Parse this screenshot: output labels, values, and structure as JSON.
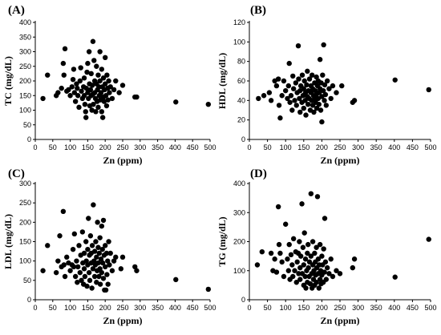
{
  "chart_data": [
    {
      "panel": "(A)",
      "type": "scatter",
      "xlabel": "Zn (ppm)",
      "ylabel": "TC (mg/dL)",
      "xlim": [
        0,
        500
      ],
      "ylim": [
        0,
        400
      ],
      "xticks": [
        0,
        50,
        100,
        150,
        200,
        250,
        300,
        350,
        400,
        450,
        500
      ],
      "yticks": [
        0,
        50,
        100,
        150,
        200,
        250,
        300,
        350,
        400
      ],
      "points": [
        [
          22,
          140
        ],
        [
          35,
          220
        ],
        [
          60,
          150
        ],
        [
          65,
          160
        ],
        [
          75,
          175
        ],
        [
          80,
          260
        ],
        [
          82,
          220
        ],
        [
          85,
          310
        ],
        [
          90,
          165
        ],
        [
          95,
          170
        ],
        [
          100,
          150
        ],
        [
          105,
          180
        ],
        [
          108,
          205
        ],
        [
          110,
          240
        ],
        [
          112,
          160
        ],
        [
          115,
          130
        ],
        [
          118,
          190
        ],
        [
          120,
          175
        ],
        [
          122,
          150
        ],
        [
          125,
          110
        ],
        [
          128,
          200
        ],
        [
          130,
          245
        ],
        [
          132,
          165
        ],
        [
          135,
          140
        ],
        [
          138,
          180
        ],
        [
          140,
          150
        ],
        [
          140,
          210
        ],
        [
          142,
          120
        ],
        [
          144,
          95
        ],
        [
          145,
          75
        ],
        [
          146,
          175
        ],
        [
          148,
          230
        ],
        [
          150,
          160
        ],
        [
          150,
          260
        ],
        [
          152,
          140
        ],
        [
          154,
          300
        ],
        [
          155,
          190
        ],
        [
          156,
          115
        ],
        [
          158,
          170
        ],
        [
          160,
          150
        ],
        [
          160,
          225
        ],
        [
          162,
          100
        ],
        [
          163,
          185
        ],
        [
          165,
          335
        ],
        [
          165,
          155
        ],
        [
          166,
          120
        ],
        [
          168,
          270
        ],
        [
          170,
          160
        ],
        [
          170,
          200
        ],
        [
          172,
          140
        ],
        [
          173,
          95
        ],
        [
          175,
          190
        ],
        [
          175,
          250
        ],
        [
          177,
          130
        ],
        [
          178,
          170
        ],
        [
          180,
          220
        ],
        [
          180,
          110
        ],
        [
          182,
          180
        ],
        [
          183,
          150
        ],
        [
          185,
          300
        ],
        [
          185,
          200
        ],
        [
          186,
          135
        ],
        [
          188,
          160
        ],
        [
          190,
          95
        ],
        [
          190,
          240
        ],
        [
          192,
          180
        ],
        [
          193,
          75
        ],
        [
          195,
          145
        ],
        [
          195,
          210
        ],
        [
          197,
          130
        ],
        [
          198,
          170
        ],
        [
          200,
          190
        ],
        [
          200,
          280
        ],
        [
          202,
          150
        ],
        [
          204,
          115
        ],
        [
          205,
          220
        ],
        [
          207,
          175
        ],
        [
          208,
          135
        ],
        [
          210,
          200
        ],
        [
          212,
          160
        ],
        [
          215,
          180
        ],
        [
          220,
          140
        ],
        [
          225,
          170
        ],
        [
          230,
          200
        ],
        [
          240,
          160
        ],
        [
          250,
          185
        ],
        [
          285,
          145
        ],
        [
          290,
          145
        ],
        [
          402,
          128
        ],
        [
          495,
          120
        ]
      ]
    },
    {
      "panel": "(B)",
      "type": "scatter",
      "xlabel": "Zn (ppm)",
      "ylabel": "HDL (mg/dL)",
      "xlim": [
        0,
        500
      ],
      "ylim": [
        0,
        120
      ],
      "xticks": [
        0,
        50,
        100,
        150,
        200,
        250,
        300,
        350,
        400,
        450,
        500
      ],
      "yticks": [
        0,
        20,
        40,
        60,
        80,
        100,
        120
      ],
      "points": [
        [
          25,
          42
        ],
        [
          40,
          45
        ],
        [
          55,
          48
        ],
        [
          60,
          40
        ],
        [
          70,
          60
        ],
        [
          75,
          55
        ],
        [
          80,
          62
        ],
        [
          82,
          35
        ],
        [
          85,
          22
        ],
        [
          90,
          45
        ],
        [
          95,
          60
        ],
        [
          100,
          50
        ],
        [
          105,
          42
        ],
        [
          108,
          55
        ],
        [
          110,
          78
        ],
        [
          112,
          38
        ],
        [
          115,
          45
        ],
        [
          118,
          30
        ],
        [
          120,
          65
        ],
        [
          122,
          52
        ],
        [
          125,
          40
        ],
        [
          128,
          58
        ],
        [
          130,
          35
        ],
        [
          132,
          48
        ],
        [
          135,
          96
        ],
        [
          136,
          62
        ],
        [
          138,
          42
        ],
        [
          140,
          50
        ],
        [
          140,
          28
        ],
        [
          142,
          55
        ],
        [
          145,
          38
        ],
        [
          146,
          66
        ],
        [
          148,
          45
        ],
        [
          150,
          52
        ],
        [
          150,
          32
        ],
        [
          152,
          60
        ],
        [
          154,
          40
        ],
        [
          155,
          48
        ],
        [
          156,
          25
        ],
        [
          158,
          56
        ],
        [
          160,
          44
        ],
        [
          160,
          70
        ],
        [
          162,
          36
        ],
        [
          163,
          50
        ],
        [
          165,
          42
        ],
        [
          166,
          62
        ],
        [
          168,
          30
        ],
        [
          170,
          48
        ],
        [
          170,
          55
        ],
        [
          172,
          40
        ],
        [
          173,
          66
        ],
        [
          175,
          35
        ],
        [
          175,
          52
        ],
        [
          177,
          45
        ],
        [
          178,
          28
        ],
        [
          180,
          58
        ],
        [
          180,
          42
        ],
        [
          182,
          50
        ],
        [
          183,
          38
        ],
        [
          185,
          64
        ],
        [
          185,
          46
        ],
        [
          186,
          32
        ],
        [
          188,
          55
        ],
        [
          190,
          42
        ],
        [
          190,
          60
        ],
        [
          192,
          36
        ],
        [
          193,
          48
        ],
        [
          195,
          52
        ],
        [
          195,
          82
        ],
        [
          197,
          30
        ],
        [
          198,
          58
        ],
        [
          200,
          44
        ],
        [
          200,
          18
        ],
        [
          202,
          66
        ],
        [
          204,
          50
        ],
        [
          205,
          97
        ],
        [
          207,
          40
        ],
        [
          208,
          56
        ],
        [
          210,
          46
        ],
        [
          212,
          35
        ],
        [
          215,
          60
        ],
        [
          220,
          52
        ],
        [
          225,
          42
        ],
        [
          230,
          55
        ],
        [
          240,
          48
        ],
        [
          255,
          55
        ],
        [
          285,
          38
        ],
        [
          290,
          40
        ],
        [
          402,
          61
        ],
        [
          495,
          51
        ]
      ]
    },
    {
      "panel": "(C)",
      "type": "scatter",
      "xlabel": "Zn (ppm)",
      "ylabel": "LDL (mg/dL)",
      "xlim": [
        0,
        500
      ],
      "ylim": [
        0,
        300
      ],
      "xticks": [
        0,
        50,
        100,
        150,
        200,
        250,
        300,
        350,
        400,
        450,
        500
      ],
      "yticks": [
        0,
        50,
        100,
        150,
        200,
        250,
        300
      ],
      "points": [
        [
          22,
          75
        ],
        [
          35,
          140
        ],
        [
          60,
          70
        ],
        [
          65,
          100
        ],
        [
          70,
          165
        ],
        [
          75,
          85
        ],
        [
          80,
          228
        ],
        [
          82,
          90
        ],
        [
          85,
          60
        ],
        [
          90,
          110
        ],
        [
          95,
          95
        ],
        [
          100,
          75
        ],
        [
          105,
          90
        ],
        [
          108,
          130
        ],
        [
          110,
          85
        ],
        [
          112,
          170
        ],
        [
          115,
          60
        ],
        [
          118,
          100
        ],
        [
          120,
          45
        ],
        [
          122,
          85
        ],
        [
          125,
          140
        ],
        [
          128,
          70
        ],
        [
          130,
          115
        ],
        [
          132,
          50
        ],
        [
          135,
          175
        ],
        [
          136,
          95
        ],
        [
          138,
          40
        ],
        [
          140,
          120
        ],
        [
          140,
          80
        ],
        [
          142,
          60
        ],
        [
          145,
          150
        ],
        [
          146,
          100
        ],
        [
          148,
          35
        ],
        [
          150,
          130
        ],
        [
          150,
          90
        ],
        [
          152,
          210
        ],
        [
          154,
          70
        ],
        [
          155,
          115
        ],
        [
          156,
          50
        ],
        [
          158,
          165
        ],
        [
          160,
          95
        ],
        [
          160,
          120
        ],
        [
          162,
          30
        ],
        [
          163,
          140
        ],
        [
          165,
          80
        ],
        [
          166,
          245
        ],
        [
          168,
          100
        ],
        [
          170,
          60
        ],
        [
          170,
          125
        ],
        [
          172,
          90
        ],
        [
          173,
          150
        ],
        [
          175,
          45
        ],
        [
          175,
          110
        ],
        [
          177,
          75
        ],
        [
          178,
          200
        ],
        [
          180,
          135
        ],
        [
          180,
          95
        ],
        [
          182,
          60
        ],
        [
          183,
          120
        ],
        [
          185,
          80
        ],
        [
          185,
          160
        ],
        [
          186,
          40
        ],
        [
          188,
          105
        ],
        [
          190,
          190
        ],
        [
          190,
          70
        ],
        [
          192,
          130
        ],
        [
          193,
          95
        ],
        [
          195,
          55
        ],
        [
          195,
          205
        ],
        [
          197,
          115
        ],
        [
          198,
          25
        ],
        [
          200,
          140
        ],
        [
          200,
          85
        ],
        [
          202,
          25
        ],
        [
          204,
          120
        ],
        [
          205,
          65
        ],
        [
          207,
          100
        ],
        [
          208,
          40
        ],
        [
          210,
          150
        ],
        [
          212,
          90
        ],
        [
          215,
          120
        ],
        [
          220,
          75
        ],
        [
          225,
          100
        ],
        [
          230,
          110
        ],
        [
          245,
          80
        ],
        [
          250,
          110
        ],
        [
          285,
          85
        ],
        [
          290,
          75
        ],
        [
          402,
          52
        ],
        [
          495,
          27
        ]
      ]
    },
    {
      "panel": "(D)",
      "type": "scatter",
      "xlabel": "Zn (ppm)",
      "ylabel": "TG (mg/dL)",
      "xlim": [
        0,
        500
      ],
      "ylim": [
        0,
        400
      ],
      "xticks": [
        0,
        50,
        100,
        150,
        200,
        250,
        300,
        350,
        400,
        450,
        500
      ],
      "yticks": [
        0,
        100,
        200,
        300,
        400
      ],
      "points": [
        [
          22,
          120
        ],
        [
          35,
          165
        ],
        [
          60,
          160
        ],
        [
          65,
          100
        ],
        [
          70,
          140
        ],
        [
          75,
          95
        ],
        [
          80,
          320
        ],
        [
          82,
          190
        ],
        [
          85,
          160
        ],
        [
          90,
          130
        ],
        [
          95,
          80
        ],
        [
          100,
          260
        ],
        [
          105,
          140
        ],
        [
          108,
          100
        ],
        [
          110,
          190
        ],
        [
          112,
          70
        ],
        [
          115,
          155
        ],
        [
          118,
          120
        ],
        [
          120,
          80
        ],
        [
          122,
          210
        ],
        [
          125,
          100
        ],
        [
          128,
          165
        ],
        [
          130,
          60
        ],
        [
          132,
          130
        ],
        [
          135,
          160
        ],
        [
          136,
          90
        ],
        [
          138,
          200
        ],
        [
          140,
          110
        ],
        [
          140,
          70
        ],
        [
          142,
          150
        ],
        [
          145,
          330
        ],
        [
          146,
          90
        ],
        [
          148,
          180
        ],
        [
          150,
          50
        ],
        [
          150,
          120
        ],
        [
          152,
          230
        ],
        [
          154,
          80
        ],
        [
          155,
          140
        ],
        [
          156,
          40
        ],
        [
          158,
          100
        ],
        [
          160,
          160
        ],
        [
          160,
          60
        ],
        [
          162,
          190
        ],
        [
          163,
          110
        ],
        [
          165,
          80
        ],
        [
          166,
          130
        ],
        [
          168,
          55
        ],
        [
          170,
          365
        ],
        [
          170,
          150
        ],
        [
          172,
          90
        ],
        [
          173,
          40
        ],
        [
          175,
          120
        ],
        [
          175,
          200
        ],
        [
          177,
          70
        ],
        [
          178,
          100
        ],
        [
          180,
          160
        ],
        [
          180,
          50
        ],
        [
          182,
          130
        ],
        [
          183,
          85
        ],
        [
          185,
          180
        ],
        [
          185,
          60
        ],
        [
          186,
          110
        ],
        [
          188,
          355
        ],
        [
          190,
          90
        ],
        [
          190,
          140
        ],
        [
          192,
          40
        ],
        [
          193,
          120
        ],
        [
          195,
          70
        ],
        [
          195,
          190
        ],
        [
          197,
          100
        ],
        [
          198,
          55
        ],
        [
          200,
          150
        ],
        [
          200,
          85
        ],
        [
          202,
          120
        ],
        [
          204,
          60
        ],
        [
          205,
          175
        ],
        [
          207,
          95
        ],
        [
          208,
          280
        ],
        [
          210,
          130
        ],
        [
          212,
          70
        ],
        [
          215,
          110
        ],
        [
          220,
          90
        ],
        [
          225,
          140
        ],
        [
          230,
          80
        ],
        [
          240,
          100
        ],
        [
          250,
          90
        ],
        [
          285,
          110
        ],
        [
          290,
          140
        ],
        [
          402,
          78
        ],
        [
          495,
          208
        ]
      ]
    }
  ]
}
